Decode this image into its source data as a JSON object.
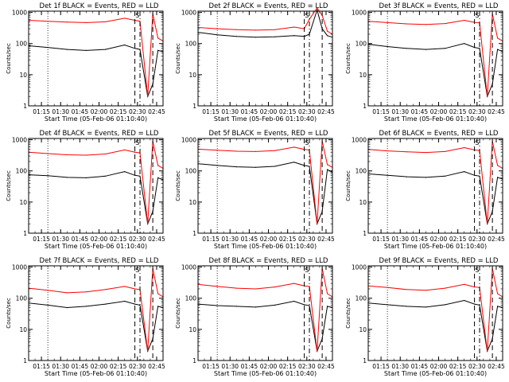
{
  "colors": {
    "events": "#000000",
    "lld": "#ff0000",
    "axis": "#000000",
    "background": "#ffffff"
  },
  "chart_data": [
    {
      "type": "line",
      "title": "Det 1f BLACK = Events, RED = LLD",
      "xlabel": "Start Time (05-Feb-06 01:10:40)",
      "ylabel": "Counts/sec",
      "x_ticks": [
        "01:15",
        "01:30",
        "01:45",
        "02:00",
        "02:15",
        "02:30",
        "02:45"
      ],
      "y_ticks": [
        "1",
        "10",
        "100",
        "1000"
      ],
      "ylim": [
        1,
        1100
      ],
      "yscale": "log",
      "xlim_min": [
        65,
        170
      ],
      "tick_min": [
        75,
        90,
        105,
        120,
        135,
        150,
        165
      ],
      "saa_label": "S",
      "x_min": [
        65,
        80,
        95,
        110,
        125,
        140,
        148,
        152,
        158,
        162,
        166,
        170
      ],
      "series": [
        {
          "name": "BLACK = Events",
          "values": [
            85,
            75,
            65,
            60,
            65,
            90,
            70,
            65,
            2,
            5,
            60,
            55
          ]
        },
        {
          "name": "RED = LLD",
          "values": [
            560,
            520,
            490,
            470,
            500,
            650,
            560,
            520,
            2,
            900,
            150,
            120
          ]
        }
      ]
    },
    {
      "type": "line",
      "title": "Det 2f BLACK = Events, RED = LLD",
      "xlabel": "Start Time (05-Feb-06 01:10:40)",
      "ylabel": "Counts/sec",
      "x_ticks": [
        "01:15",
        "01:30",
        "01:45",
        "02:00",
        "02:15",
        "02:30",
        "02:45"
      ],
      "y_ticks": [
        "1",
        "10",
        "100",
        "1000"
      ],
      "ylim": [
        1,
        1100
      ],
      "yscale": "log",
      "xlim_min": [
        65,
        170
      ],
      "tick_min": [
        75,
        90,
        105,
        120,
        135,
        150,
        165
      ],
      "saa_label": "S",
      "x_min": [
        65,
        80,
        95,
        110,
        125,
        140,
        148,
        152,
        158,
        162,
        166,
        170
      ],
      "series": [
        {
          "name": "BLACK = Events",
          "values": [
            230,
            190,
            170,
            160,
            165,
            180,
            170,
            200,
            1200,
            300,
            180,
            160
          ]
        },
        {
          "name": "RED = LLD",
          "values": [
            330,
            300,
            280,
            270,
            280,
            340,
            300,
            600,
            1400,
            800,
            250,
            200
          ]
        }
      ]
    },
    {
      "type": "line",
      "title": "Det 3f BLACK = Events, RED = LLD",
      "xlabel": "Start Time (05-Feb-06 01:10:40)",
      "ylabel": "Counts/sec",
      "x_ticks": [
        "01:15",
        "01:30",
        "01:45",
        "02:00",
        "02:15",
        "02:30",
        "02:45"
      ],
      "y_ticks": [
        "1",
        "10",
        "100",
        "1000"
      ],
      "ylim": [
        1,
        1100
      ],
      "yscale": "log",
      "xlim_min": [
        65,
        170
      ],
      "tick_min": [
        75,
        90,
        105,
        120,
        135,
        150,
        165
      ],
      "saa_label": "S",
      "x_min": [
        65,
        80,
        95,
        110,
        125,
        140,
        148,
        152,
        158,
        162,
        166,
        170
      ],
      "series": [
        {
          "name": "BLACK = Events",
          "values": [
            95,
            80,
            70,
            65,
            70,
            100,
            75,
            70,
            2,
            5,
            65,
            55
          ]
        },
        {
          "name": "RED = LLD",
          "values": [
            520,
            470,
            430,
            410,
            440,
            560,
            480,
            460,
            2,
            900,
            150,
            120
          ]
        }
      ]
    },
    {
      "type": "line",
      "title": "Det 4f BLACK = Events, RED = LLD",
      "xlabel": "Start Time (05-Feb-06 01:10:40)",
      "ylabel": "Counts/sec",
      "x_ticks": [
        "01:15",
        "01:30",
        "01:45",
        "02:00",
        "02:15",
        "02:30",
        "02:45"
      ],
      "y_ticks": [
        "1",
        "10",
        "100",
        "1000"
      ],
      "ylim": [
        1,
        1100
      ],
      "yscale": "log",
      "xlim_min": [
        65,
        170
      ],
      "tick_min": [
        75,
        90,
        105,
        120,
        135,
        150,
        165
      ],
      "saa_label": "S",
      "x_min": [
        65,
        80,
        95,
        110,
        125,
        140,
        148,
        152,
        158,
        162,
        166,
        170
      ],
      "series": [
        {
          "name": "BLACK = Events",
          "values": [
            75,
            70,
            62,
            60,
            68,
            95,
            72,
            68,
            2,
            5,
            60,
            52
          ]
        },
        {
          "name": "RED = LLD",
          "values": [
            400,
            360,
            330,
            320,
            350,
            470,
            400,
            380,
            2,
            900,
            150,
            120
          ]
        }
      ]
    },
    {
      "type": "line",
      "title": "Det 5f BLACK = Events, RED = LLD",
      "xlabel": "Start Time (05-Feb-06 01:10:40)",
      "ylabel": "Counts/sec",
      "x_ticks": [
        "01:15",
        "01:30",
        "01:45",
        "02:00",
        "02:15",
        "02:30",
        "02:45"
      ],
      "y_ticks": [
        "1",
        "10",
        "100",
        "1000"
      ],
      "ylim": [
        1,
        1100
      ],
      "yscale": "log",
      "xlim_min": [
        65,
        170
      ],
      "tick_min": [
        75,
        90,
        105,
        120,
        135,
        150,
        165
      ],
      "saa_label": "S",
      "x_min": [
        65,
        80,
        95,
        110,
        125,
        140,
        148,
        152,
        158,
        162,
        166,
        170
      ],
      "series": [
        {
          "name": "BLACK = Events",
          "values": [
            170,
            150,
            135,
            130,
            140,
            190,
            150,
            140,
            2,
            5,
            110,
            90
          ]
        },
        {
          "name": "RED = LLD",
          "values": [
            500,
            460,
            430,
            420,
            450,
            580,
            490,
            470,
            2,
            900,
            160,
            130
          ]
        }
      ]
    },
    {
      "type": "line",
      "title": "Det 6f BLACK = Events, RED = LLD",
      "xlabel": "Start Time (05-Feb-06 01:10:40)",
      "ylabel": "Counts/sec",
      "x_ticks": [
        "01:15",
        "01:30",
        "01:45",
        "02:00",
        "02:15",
        "02:30",
        "02:45"
      ],
      "y_ticks": [
        "1",
        "10",
        "100",
        "1000"
      ],
      "ylim": [
        1,
        1100
      ],
      "yscale": "log",
      "xlim_min": [
        65,
        170
      ],
      "tick_min": [
        75,
        90,
        105,
        120,
        135,
        150,
        165
      ],
      "saa_label": "S",
      "x_min": [
        65,
        80,
        95,
        110,
        125,
        140,
        148,
        152,
        158,
        162,
        166,
        170
      ],
      "series": [
        {
          "name": "BLACK = Events",
          "values": [
            80,
            72,
            65,
            62,
            68,
            95,
            72,
            68,
            2,
            5,
            62,
            55
          ]
        },
        {
          "name": "RED = LLD",
          "values": [
            490,
            440,
            410,
            390,
            420,
            560,
            470,
            450,
            2,
            900,
            150,
            120
          ]
        }
      ]
    },
    {
      "type": "line",
      "title": "Det 7f BLACK = Events, RED = LLD",
      "xlabel": "Start Time (05-Feb-06 01:10:40)",
      "ylabel": "Counts/sec",
      "x_ticks": [
        "01:15",
        "01:30",
        "01:45",
        "02:00",
        "02:15",
        "02:30",
        "02:45"
      ],
      "y_ticks": [
        "1",
        "10",
        "100",
        "1000"
      ],
      "ylim": [
        1,
        1100
      ],
      "yscale": "log",
      "xlim_min": [
        65,
        170
      ],
      "tick_min": [
        75,
        90,
        105,
        120,
        135,
        150,
        165
      ],
      "saa_label": "S",
      "x_min": [
        65,
        80,
        95,
        110,
        125,
        140,
        148,
        152,
        158,
        162,
        166,
        170
      ],
      "series": [
        {
          "name": "BLACK = Events",
          "values": [
            70,
            60,
            50,
            55,
            65,
            80,
            65,
            60,
            2,
            5,
            55,
            50
          ]
        },
        {
          "name": "RED = LLD",
          "values": [
            210,
            180,
            150,
            160,
            190,
            240,
            200,
            190,
            2,
            900,
            140,
            110
          ]
        }
      ]
    },
    {
      "type": "line",
      "title": "Det 8f BLACK = Events, RED = LLD",
      "xlabel": "Start Time (05-Feb-06 01:10:40)",
      "ylabel": "Counts/sec",
      "x_ticks": [
        "01:15",
        "01:30",
        "01:45",
        "02:00",
        "02:15",
        "02:30",
        "02:45"
      ],
      "y_ticks": [
        "1",
        "10",
        "100",
        "1000"
      ],
      "ylim": [
        1,
        1100
      ],
      "yscale": "log",
      "xlim_min": [
        65,
        170
      ],
      "tick_min": [
        75,
        90,
        105,
        120,
        135,
        150,
        165
      ],
      "saa_label": "S",
      "x_min": [
        65,
        80,
        95,
        110,
        125,
        140,
        148,
        152,
        158,
        162,
        166,
        170
      ],
      "series": [
        {
          "name": "BLACK = Events",
          "values": [
            65,
            58,
            55,
            52,
            60,
            80,
            62,
            58,
            2,
            5,
            55,
            50
          ]
        },
        {
          "name": "RED = LLD",
          "values": [
            280,
            240,
            210,
            200,
            230,
            300,
            250,
            240,
            2,
            900,
            140,
            110
          ]
        }
      ]
    },
    {
      "type": "line",
      "title": "Det 9f BLACK = Events, RED = LLD",
      "xlabel": "Start Time (05-Feb-06 01:10:40)",
      "ylabel": "Counts/sec",
      "x_ticks": [
        "01:15",
        "01:30",
        "01:45",
        "02:00",
        "02:15",
        "02:30",
        "02:45"
      ],
      "y_ticks": [
        "1",
        "10",
        "100",
        "1000"
      ],
      "ylim": [
        1,
        1100
      ],
      "yscale": "log",
      "xlim_min": [
        65,
        170
      ],
      "tick_min": [
        75,
        90,
        105,
        120,
        135,
        150,
        165
      ],
      "saa_label": "S",
      "x_min": [
        65,
        80,
        95,
        110,
        125,
        140,
        148,
        152,
        158,
        162,
        166,
        170
      ],
      "series": [
        {
          "name": "BLACK = Events",
          "values": [
            70,
            62,
            55,
            52,
            62,
            85,
            65,
            60,
            2,
            5,
            55,
            50
          ]
        },
        {
          "name": "RED = LLD",
          "values": [
            250,
            220,
            190,
            180,
            210,
            280,
            230,
            220,
            2,
            900,
            140,
            110
          ]
        }
      ]
    }
  ]
}
